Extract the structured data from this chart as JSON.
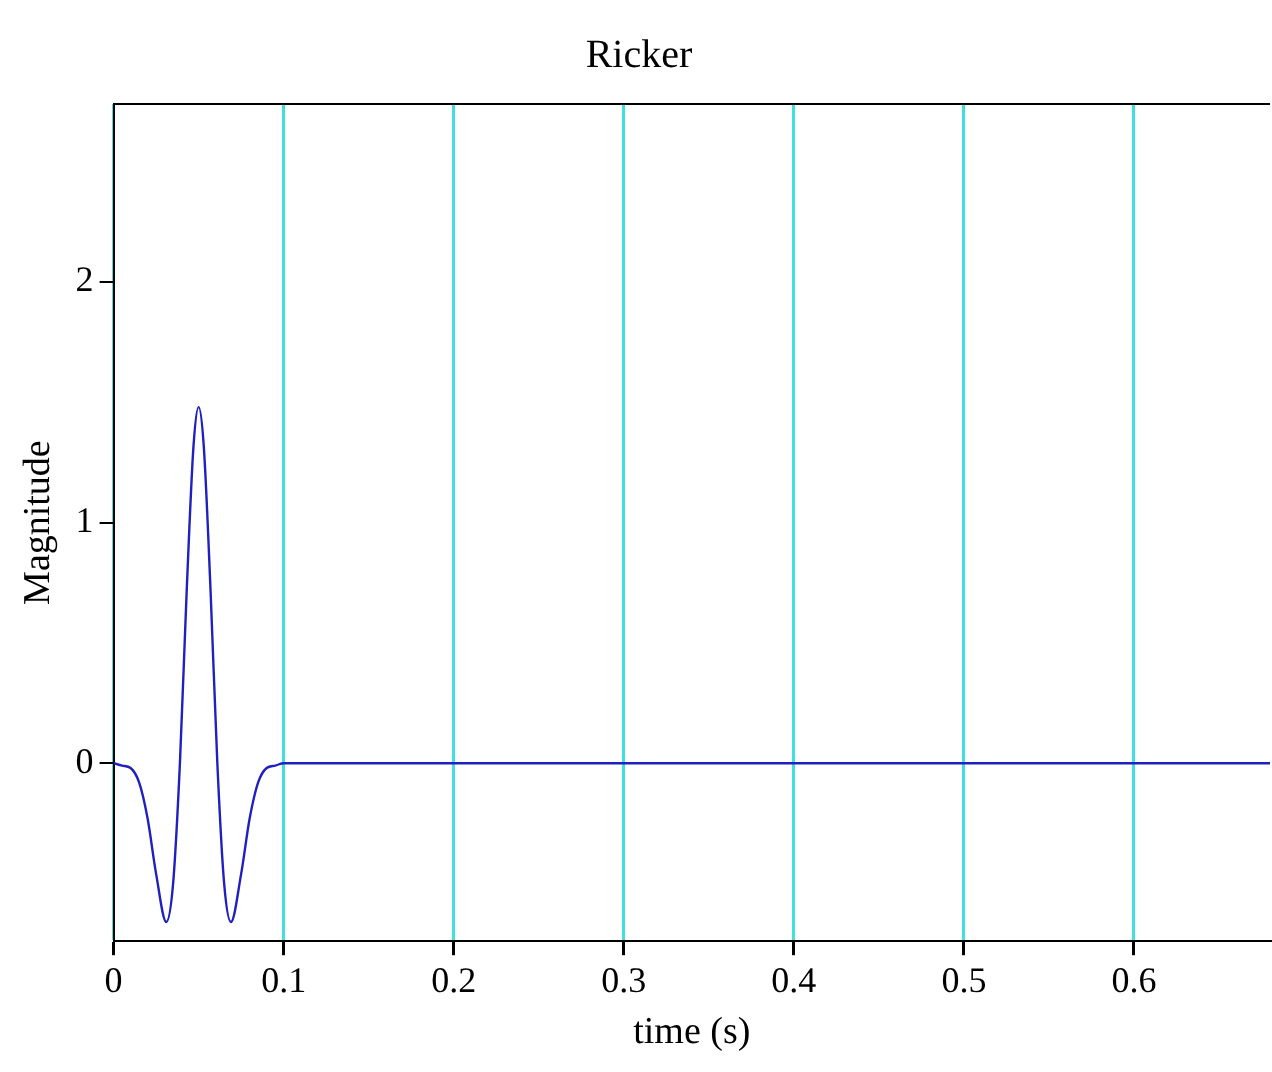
{
  "chart_data": {
    "type": "line",
    "title": "Ricker",
    "xlabel": "time (s)",
    "ylabel": "Magnitude",
    "series": [
      {
        "color": "#2020c0",
        "x": [
          0,
          0.005,
          0.01,
          0.015,
          0.02,
          0.025,
          0.031,
          0.035,
          0.039,
          0.043,
          0.047,
          0.05,
          0.053,
          0.057,
          0.061,
          0.065,
          0.069,
          0.075,
          0.08,
          0.085,
          0.09,
          0.095,
          0.1,
          0.68
        ],
        "values": [
          0,
          -0.01,
          -0.02,
          -0.08,
          -0.23,
          -0.46,
          -0.66,
          -0.5,
          0,
          0.72,
          1.32,
          1.48,
          1.32,
          0.72,
          0,
          -0.5,
          -0.66,
          -0.46,
          -0.23,
          -0.08,
          -0.02,
          -0.01,
          0,
          0
        ]
      }
    ],
    "xlim": [
      0,
      0.68
    ],
    "xticks": [
      0,
      0.1,
      0.2,
      0.3,
      0.4,
      0.5,
      0.6
    ],
    "ylim": [
      -0.74,
      2.74
    ],
    "yticks": [
      0,
      1,
      2
    ],
    "grid": "x",
    "legend": false,
    "marker": "none",
    "line_style": "solid"
  }
}
